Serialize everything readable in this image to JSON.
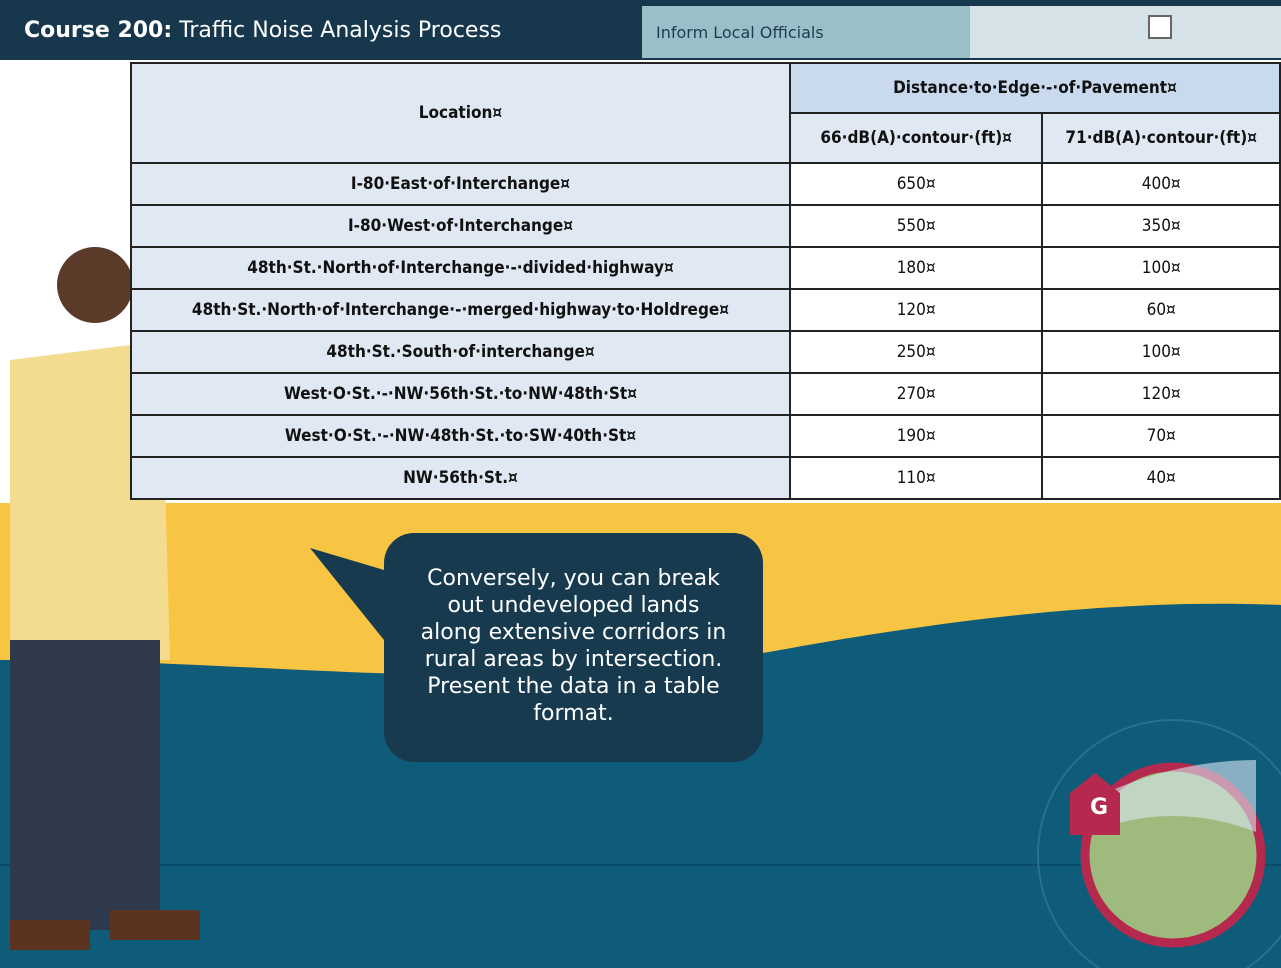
{
  "header": {
    "course": "Course 200:",
    "title": "Traffic Noise Analysis Process",
    "tab": "Inform Local Officials"
  },
  "table": {
    "headers": {
      "location": "Location¤",
      "distance": "Distance·to·Edge·-·of·Pavement¤",
      "col1": "66·dB(A)·contour·(ft)¤",
      "col2": "71·dB(A)·contour·(ft)¤"
    },
    "rows": [
      [
        "I-80·East·of·Interchange¤",
        "650¤",
        "400¤"
      ],
      [
        "I-80·West·of·Interchange¤",
        "550¤",
        "350¤"
      ],
      [
        "48th·St.·North·of·Interchange·-·divided·highway¤",
        "180¤",
        "100¤"
      ],
      [
        "48th·St.·North·of·Interchange·-·merged·highway·to·Holdrege¤",
        "120¤",
        "60¤"
      ],
      [
        "48th·St.·South·of·interchange¤",
        "250¤",
        "100¤"
      ],
      [
        "West·O·St.·-·NW·56th·St.·to·NW·48th·St¤",
        "270¤",
        "120¤"
      ],
      [
        "West·O·St.·-·NW·48th·St.·to·SW·40th·St¤",
        "190¤",
        "70¤"
      ],
      [
        "NW·56th·St.¤",
        "110¤",
        "40¤"
      ]
    ]
  },
  "bubble": {
    "text": "Conversely, you can break out undeveloped lands along extensive corridors in rural areas by intersection. Present the data in a table format."
  },
  "badge": {
    "label": "G"
  }
}
